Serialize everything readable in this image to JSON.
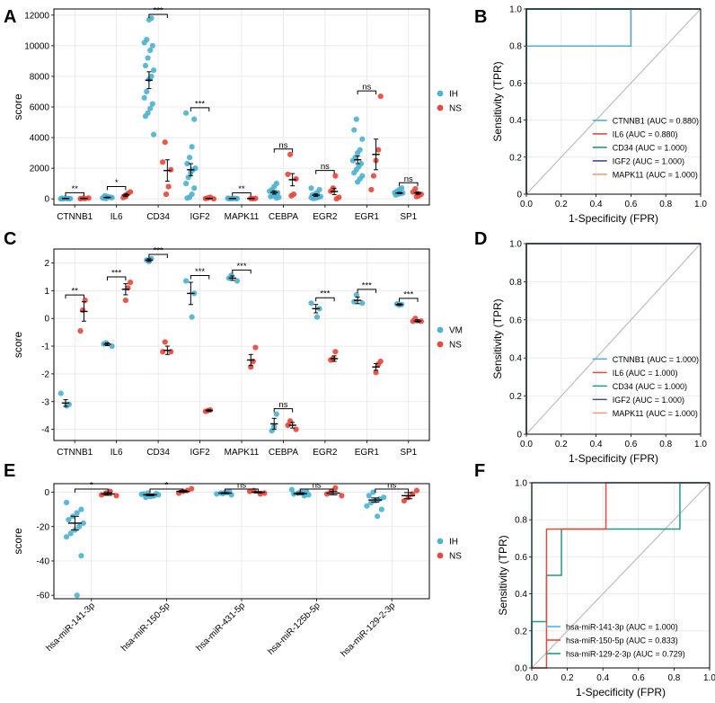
{
  "chart_data": [
    {
      "panel": "A",
      "type": "scatter",
      "ylabel": "score",
      "xlabel": "",
      "ylim": [
        -400,
        12400
      ],
      "yticks": [
        0,
        2000,
        4000,
        6000,
        8000,
        10000,
        12000
      ],
      "tick_labels": [
        "0",
        "2000",
        "4000",
        "6000",
        "8000",
        "10000",
        "12000"
      ],
      "legend": {
        "position": "right",
        "entries": [
          "IH",
          "NS"
        ]
      },
      "categories": [
        "CTNNB1",
        "IL6",
        "CD34",
        "IGF2",
        "MAPK11",
        "CEBPA",
        "EGR2",
        "EGR1",
        "SP1"
      ],
      "significance": [
        "**",
        "*",
        "***",
        "***",
        "**",
        "ns",
        "ns",
        "ns",
        "ns"
      ],
      "series": [
        {
          "name": "IH",
          "color": "#4eb3d3",
          "mean": [
            20,
            90,
            7750,
            1900,
            20,
            420,
            240,
            2550,
            380
          ],
          "sem": [
            10,
            25,
            550,
            400,
            10,
            110,
            80,
            250,
            40
          ],
          "points": [
            [
              0,
              10,
              20,
              30,
              40,
              15,
              25,
              35,
              5,
              12
            ],
            [
              20,
              50,
              80,
              100,
              150,
              200,
              60,
              90,
              110,
              70
            ],
            [
              11800,
              11700,
              10400,
              10200,
              10000,
              9700,
              9200,
              8700,
              8400,
              8000,
              7800,
              7000,
              6600,
              6200,
              5900,
              5600,
              5400,
              4200
            ],
            [
              5600,
              5200,
              3400,
              2700,
              2300,
              2000,
              1900,
              1700,
              1400,
              1000,
              700,
              300,
              100,
              50
            ],
            [
              0,
              10,
              20,
              30,
              15,
              25,
              40,
              5
            ],
            [
              1000,
              800,
              600,
              500,
              400,
              300,
              200,
              150,
              100,
              50
            ],
            [
              700,
              600,
              400,
              300,
              250,
              150,
              100,
              50,
              20,
              80
            ],
            [
              5200,
              4500,
              3900,
              3200,
              3000,
              2700,
              2500,
              2300,
              2100,
              1900,
              1700,
              1500,
              1300,
              1100
            ],
            [
              700,
              600,
              500,
              400,
              380,
              350,
              300,
              250
            ]
          ]
        },
        {
          "name": "NS",
          "color": "#e8493b",
          "mean": [
            30,
            250,
            1850,
            30,
            20,
            1250,
            480,
            2900,
            380
          ],
          "sem": [
            10,
            100,
            700,
            10,
            10,
            400,
            200,
            1000,
            80
          ],
          "points": [
            [
              20,
              40,
              10,
              50
            ],
            [
              450,
              350,
              150,
              80
            ],
            [
              3700,
              2400,
              1900,
              800,
              300
            ],
            [
              100,
              50,
              20,
              0
            ],
            [
              30,
              10,
              20
            ],
            [
              2900,
              1600,
              1300,
              300,
              200
            ],
            [
              1500,
              700,
              500,
              100,
              0
            ],
            [
              6700,
              3200,
              2500,
              1500,
              600
            ],
            [
              650,
              450,
              300,
              200,
              150
            ]
          ]
        }
      ]
    },
    {
      "panel": "B",
      "type": "line",
      "title": "",
      "xlabel": "1-Specificity (FPR)",
      "ylabel": "Sensitivity (TPR)",
      "xlim": [
        0,
        1
      ],
      "ylim": [
        0,
        1
      ],
      "xticks": [
        0,
        0.2,
        0.4,
        0.6,
        0.8,
        1
      ],
      "x_tick_labels": [
        "0.0",
        "0.2",
        "0.4",
        "0.6",
        "0.8",
        "1.0"
      ],
      "y_tick_labels": [
        "0",
        "0.2",
        "0.4",
        "0.6",
        "0.8",
        "1.0"
      ],
      "legend_position": "bottom-right",
      "series": [
        {
          "name": "CTNNB1 (AUC = 0.880)",
          "color": "#4eb3d3",
          "x": [
            0,
            0,
            0,
            0.6,
            0.6,
            1
          ],
          "y": [
            0,
            0.8,
            0.8,
            0.8,
            1,
            1
          ]
        },
        {
          "name": "IL6 (AUC = 0.880)",
          "color": "#e8493b",
          "x": [
            0,
            0,
            0.6,
            0.6,
            1
          ],
          "y": [
            0,
            0.8,
            0.8,
            1,
            1
          ]
        },
        {
          "name": "CD34 (AUC = 1.000)",
          "color": "#1f9a8a",
          "x": [
            0,
            0,
            1
          ],
          "y": [
            0,
            1,
            1
          ]
        },
        {
          "name": "IGF2 (AUC = 1.000)",
          "color": "#3c5488",
          "x": [
            0,
            0,
            1
          ],
          "y": [
            0,
            1,
            1
          ]
        },
        {
          "name": "MAPK11 (AUC = 1.000)",
          "color": "#f39b7f",
          "x": [
            0,
            0,
            1
          ],
          "y": [
            0,
            1,
            1
          ]
        }
      ]
    },
    {
      "panel": "C",
      "type": "scatter",
      "ylabel": "score",
      "xlabel": "",
      "ylim": [
        -4.4,
        2.5
      ],
      "yticks": [
        -4,
        -3,
        -2,
        -1,
        0,
        1,
        2
      ],
      "tick_labels": [
        "-4",
        "-3",
        "-2",
        "-1",
        "0",
        "1",
        "2"
      ],
      "legend": {
        "position": "right",
        "entries": [
          "VM",
          "NS"
        ]
      },
      "categories": [
        "CTNNB1",
        "IL6",
        "CD34",
        "IGF2",
        "MAPK11",
        "CEBPA",
        "EGR2",
        "EGR1",
        "SP1"
      ],
      "significance": [
        "**",
        "***",
        "***",
        "***",
        "***",
        "ns",
        "***",
        "***",
        "***"
      ],
      "series": [
        {
          "name": "VM",
          "color": "#4eb3d3",
          "mean": [
            -3.05,
            -0.93,
            2.1,
            0.9,
            1.45,
            -3.8,
            0.35,
            0.65,
            0.5
          ],
          "sem": [
            0.12,
            0.05,
            0.05,
            0.4,
            0.08,
            0.2,
            0.15,
            0.12,
            0.03
          ],
          "points": [
            [
              -2.7,
              -3.1,
              -3.15
            ],
            [
              -0.88,
              -0.92,
              -1.0
            ],
            [
              2.15,
              2.05,
              2.1
            ],
            [
              1.35,
              0.9,
              0.05
            ],
            [
              1.55,
              1.45,
              1.35
            ],
            [
              -3.45,
              -3.9,
              -4.05
            ],
            [
              0.55,
              0.35,
              0.05
            ],
            [
              0.85,
              0.6,
              0.55
            ],
            [
              0.5,
              0.48,
              0.52
            ]
          ]
        },
        {
          "name": "NS",
          "color": "#e8493b",
          "mean": [
            0.25,
            1.05,
            -1.15,
            -3.32,
            -1.5,
            -3.85,
            -1.45,
            -1.75,
            -0.1
          ],
          "sem": [
            0.35,
            0.2,
            0.15,
            0.03,
            0.2,
            0.1,
            0.1,
            0.12,
            0.05
          ],
          "points": [
            [
              0.65,
              0.3,
              -0.45
            ],
            [
              1.3,
              1.1,
              0.65
            ],
            [
              -0.85,
              -1.2,
              -1.2
            ],
            [
              -3.3,
              -3.32,
              -3.35
            ],
            [
              -1.05,
              -1.55,
              -1.75
            ],
            [
              -3.7,
              -3.85,
              -4.0
            ],
            [
              -1.2,
              -1.45,
              -1.5
            ],
            [
              -1.55,
              -1.65,
              -1.95
            ],
            [
              0.0,
              -0.1,
              -0.1
            ]
          ]
        }
      ]
    },
    {
      "panel": "D",
      "type": "line",
      "title": "",
      "xlabel": "1-Specificity (FPR)",
      "ylabel": "Sensitivity (TPR)",
      "xlim": [
        0,
        1
      ],
      "ylim": [
        0,
        1
      ],
      "xticks": [
        0,
        0.2,
        0.4,
        0.6,
        0.8,
        1
      ],
      "x_tick_labels": [
        "0.0",
        "0.2",
        "0.4",
        "0.6",
        "0.8",
        "1.0"
      ],
      "y_tick_labels": [
        "0",
        "0.2",
        "0.4",
        "0.6",
        "0.8",
        "1.0"
      ],
      "legend_position": "bottom-right",
      "series": [
        {
          "name": "CTNNB1 (AUC = 1.000)",
          "color": "#4eb3d3",
          "x": [
            0,
            0,
            1
          ],
          "y": [
            0,
            1,
            1
          ]
        },
        {
          "name": "IL6 (AUC = 1.000)",
          "color": "#e8493b",
          "x": [
            0,
            0,
            1
          ],
          "y": [
            0,
            1,
            1
          ]
        },
        {
          "name": "CD34 (AUC = 1.000)",
          "color": "#1f9a8a",
          "x": [
            0,
            0,
            1
          ],
          "y": [
            0,
            1,
            1
          ]
        },
        {
          "name": "IGF2 (AUC = 1.000)",
          "color": "#3c5488",
          "x": [
            0,
            0,
            1
          ],
          "y": [
            0,
            1,
            1
          ]
        },
        {
          "name": "MAPK11 (AUC = 1.000)",
          "color": "#f39b7f",
          "x": [
            0,
            0,
            1
          ],
          "y": [
            0,
            1,
            1
          ]
        }
      ]
    },
    {
      "panel": "E",
      "type": "scatter",
      "ylabel": "score",
      "xlabel": "",
      "ylim": [
        -62,
        5
      ],
      "yticks": [
        -60,
        -40,
        -20,
        0
      ],
      "tick_labels": [
        "-60",
        "-40",
        "-20",
        "0"
      ],
      "legend": {
        "position": "right",
        "entries": [
          "IH",
          "NS"
        ]
      },
      "categories": [
        "hsa-miR-141-3p",
        "hsa-miR-150-5p",
        "hsa-miR-431-5p",
        "hsa-miR-125b-5p",
        "hsa-miR-129-2-3p"
      ],
      "significance": [
        "*",
        "*",
        "ns",
        "ns",
        "ns"
      ],
      "series": [
        {
          "name": "IH",
          "color": "#4eb3d3",
          "mean": [
            -18,
            -1.5,
            -0.5,
            -0.8,
            -4.5
          ],
          "sem": [
            4,
            0.5,
            0.3,
            0.5,
            1.2
          ],
          "points": [
            [
              -6,
              -10,
              -12,
              -14,
              -16,
              -18,
              -20,
              -22,
              -24,
              -26,
              -37,
              -60
            ],
            [
              -0.5,
              -1,
              -1.5,
              -2,
              -2.5,
              -3,
              -1.2,
              -0.8,
              -2.2
            ],
            [
              0.5,
              0,
              -0.5,
              -1,
              -1.5,
              -0.2,
              -0.8
            ],
            [
              1.5,
              0.5,
              0,
              -0.5,
              -1,
              -1.5,
              -2,
              -0.3
            ],
            [
              0,
              -2,
              -3,
              -4,
              -5,
              -6,
              -8,
              -10,
              -14
            ]
          ]
        },
        {
          "name": "NS",
          "color": "#e8493b",
          "mean": [
            -1,
            0.5,
            0,
            -0.5,
            -2
          ],
          "sem": [
            0.8,
            0.5,
            0.4,
            1,
            1.8
          ],
          "points": [
            [
              0.5,
              -0.5,
              -1.5,
              -2
            ],
            [
              2,
              1,
              0.5,
              -0.5
            ],
            [
              1,
              0.5,
              -0.5,
              -1
            ],
            [
              2.5,
              0.5,
              -1,
              -2
            ],
            [
              1,
              -1,
              -3,
              -5
            ]
          ]
        }
      ]
    },
    {
      "panel": "F",
      "type": "line",
      "title": "",
      "xlabel": "1-Specificity (FPR)",
      "ylabel": "Sensitivity (TPR)",
      "xlim": [
        0,
        1
      ],
      "ylim": [
        0,
        1
      ],
      "xticks": [
        0,
        0.2,
        0.4,
        0.6,
        0.8,
        1
      ],
      "x_tick_labels": [
        "0.0",
        "0.2",
        "0.4",
        "0.6",
        "0.8",
        "1.0"
      ],
      "y_tick_labels": [
        "0.0",
        "0.2",
        "0.4",
        "0.6",
        "0.8",
        "1.0"
      ],
      "legend_position": "bottom-left",
      "series": [
        {
          "name": "hsa-miR-141-3p (AUC = 1.000)",
          "color": "#4eb3d3",
          "x": [
            0,
            0,
            1
          ],
          "y": [
            0,
            1,
            1
          ]
        },
        {
          "name": "hsa-miR-150-5p (AUC = 0.833)",
          "color": "#e8493b",
          "x": [
            0,
            0.083,
            0.083,
            0.417,
            0.417,
            1
          ],
          "y": [
            0,
            0,
            0.75,
            0.75,
            1,
            1
          ]
        },
        {
          "name": "hsa-miR-129-2-3p (AUC = 0.729)",
          "color": "#1f9a8a",
          "x": [
            0,
            0,
            0.083,
            0.083,
            0.167,
            0.167,
            0.833,
            0.833,
            1
          ],
          "y": [
            0,
            0.25,
            0.25,
            0.5,
            0.5,
            0.75,
            0.75,
            1,
            1
          ]
        }
      ]
    }
  ]
}
